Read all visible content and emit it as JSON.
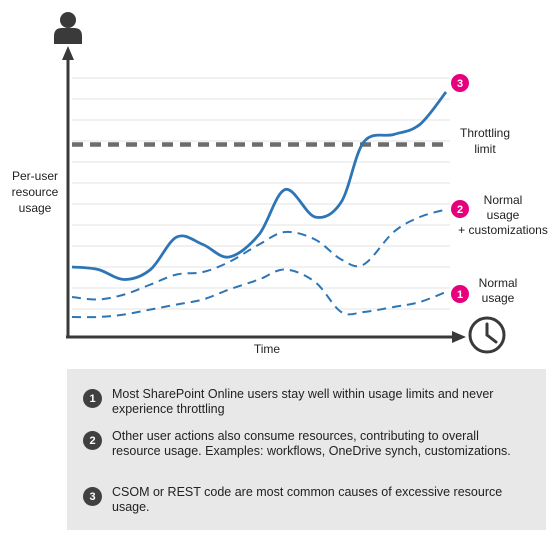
{
  "chart_data": {
    "type": "line",
    "ylabel": "Per-user\nresource\nusage",
    "xlabel": "Time",
    "threshold": {
      "label": "Throttling\nlimit",
      "value": 0.71
    },
    "series": [
      {
        "name": "Normal\nusage",
        "badge": "1",
        "color": "#2e75b6",
        "dashed": true,
        "x": [
          0,
          0.07,
          0.14,
          0.21,
          0.28,
          0.35,
          0.42,
          0.5,
          0.57,
          0.65,
          0.72,
          0.78,
          0.86,
          0.93,
          1.0
        ],
        "y": [
          0.02,
          0.02,
          0.03,
          0.05,
          0.07,
          0.09,
          0.13,
          0.17,
          0.21,
          0.16,
          0.04,
          0.04,
          0.06,
          0.08,
          0.12
        ]
      },
      {
        "name": "Normal\nusage\n+ customizations",
        "badge": "2",
        "color": "#2e75b6",
        "dashed": true,
        "x": [
          0,
          0.07,
          0.14,
          0.21,
          0.28,
          0.35,
          0.42,
          0.5,
          0.57,
          0.65,
          0.72,
          0.78,
          0.86,
          0.93,
          1.0
        ],
        "y": [
          0.1,
          0.09,
          0.11,
          0.15,
          0.19,
          0.2,
          0.24,
          0.31,
          0.36,
          0.33,
          0.25,
          0.23,
          0.36,
          0.42,
          0.45
        ]
      },
      {
        "name": "",
        "badge": "3",
        "color": "#2e75b6",
        "dashed": false,
        "x": [
          0,
          0.07,
          0.14,
          0.21,
          0.28,
          0.35,
          0.42,
          0.5,
          0.57,
          0.65,
          0.72,
          0.78,
          0.86,
          0.93,
          1.0
        ],
        "y": [
          0.22,
          0.21,
          0.17,
          0.21,
          0.34,
          0.31,
          0.26,
          0.35,
          0.53,
          0.42,
          0.48,
          0.72,
          0.75,
          0.79,
          0.92
        ]
      }
    ]
  },
  "notes": [
    {
      "num": "1",
      "text": "Most SharePoint Online users stay well within usage limits and never experience throttling"
    },
    {
      "num": "2",
      "text": "Other user actions also consume resources, contributing to overall resource usage. Examples: workflows, OneDrive synch, customizations."
    },
    {
      "num": "3",
      "text": "CSOM or REST code are most common causes of excessive resource usage."
    }
  ],
  "icons": {
    "user": "user-icon",
    "clock": "clock-icon"
  },
  "colors": {
    "line": "#2e75b6",
    "badge": "#e6007e",
    "axis": "#3a3a3a",
    "threshold": "#6d6d6d",
    "grid": "#e3e3e3"
  }
}
